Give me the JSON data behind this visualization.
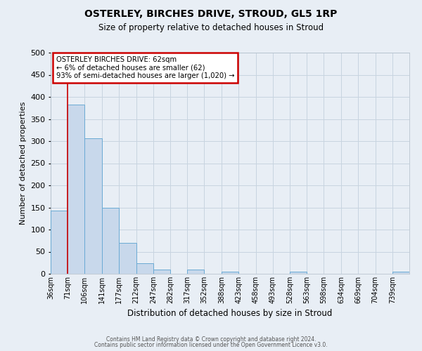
{
  "title": "OSTERLEY, BIRCHES DRIVE, STROUD, GL5 1RP",
  "subtitle": "Size of property relative to detached houses in Stroud",
  "xlabel": "Distribution of detached houses by size in Stroud",
  "ylabel": "Number of detached properties",
  "bin_labels": [
    "36sqm",
    "71sqm",
    "106sqm",
    "141sqm",
    "177sqm",
    "212sqm",
    "247sqm",
    "282sqm",
    "317sqm",
    "352sqm",
    "388sqm",
    "423sqm",
    "458sqm",
    "493sqm",
    "528sqm",
    "563sqm",
    "598sqm",
    "634sqm",
    "669sqm",
    "704sqm",
    "739sqm"
  ],
  "bar_heights": [
    143,
    383,
    307,
    149,
    70,
    24,
    10,
    0,
    9,
    0,
    4,
    0,
    0,
    0,
    5,
    0,
    0,
    0,
    0,
    0,
    4
  ],
  "bar_color": "#c8d8eb",
  "bar_edge_color": "#6aaad4",
  "background_color": "#e8eef5",
  "grid_color": "#c8d4e0",
  "ylim": [
    0,
    500
  ],
  "yticks": [
    0,
    50,
    100,
    150,
    200,
    250,
    300,
    350,
    400,
    450,
    500
  ],
  "property_line_color": "#cc0000",
  "annotation_title": "OSTERLEY BIRCHES DRIVE: 62sqm",
  "annotation_line1": "← 6% of detached houses are smaller (62)",
  "annotation_line2": "93% of semi-detached houses are larger (1,020) →",
  "annotation_box_color": "#ffffff",
  "annotation_box_edge_color": "#cc0000",
  "footer1": "Contains HM Land Registry data © Crown copyright and database right 2024.",
  "footer2": "Contains public sector information licensed under the Open Government Licence v3.0.",
  "bin_width": 35
}
